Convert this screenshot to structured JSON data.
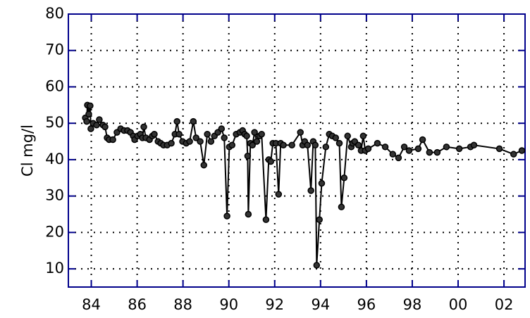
{
  "chart_data": {
    "type": "line",
    "ylabel": "Cl  mg/l",
    "color": "#000000",
    "axis_color": "#00008b",
    "grid": true,
    "markers": true,
    "xlim": [
      1983,
      2002.92
    ],
    "ylim": [
      5,
      80
    ],
    "xticks": [
      {
        "value": 1984,
        "label": "84"
      },
      {
        "value": 1986,
        "label": "86"
      },
      {
        "value": 1988,
        "label": "88"
      },
      {
        "value": 1990,
        "label": "90"
      },
      {
        "value": 1992,
        "label": "92"
      },
      {
        "value": 1994,
        "label": "94"
      },
      {
        "value": 1996,
        "label": "96"
      },
      {
        "value": 1998,
        "label": "98"
      },
      {
        "value": 2000,
        "label": "00"
      },
      {
        "value": 2002,
        "label": "02"
      }
    ],
    "yticks": [
      10,
      20,
      30,
      40,
      50,
      60,
      70,
      80
    ],
    "x": [
      1983.74,
      1983.8,
      1983.83,
      1983.89,
      1983.95,
      1983.98,
      1984.08,
      1984.23,
      1984.35,
      1984.51,
      1984.6,
      1984.69,
      1984.78,
      1984.94,
      1985.12,
      1985.28,
      1985.43,
      1985.58,
      1985.71,
      1985.83,
      1985.89,
      1986.02,
      1986.14,
      1986.23,
      1986.29,
      1986.38,
      1986.54,
      1986.66,
      1986.75,
      1986.91,
      1987.03,
      1987.15,
      1987.31,
      1987.49,
      1987.65,
      1987.74,
      1987.83,
      1987.98,
      1988.14,
      1988.29,
      1988.45,
      1988.57,
      1988.75,
      1988.91,
      1989.06,
      1989.22,
      1989.37,
      1989.52,
      1989.68,
      1989.8,
      1989.92,
      1990.02,
      1990.14,
      1990.32,
      1990.48,
      1990.6,
      1990.69,
      1990.78,
      1990.82,
      1990.85,
      1990.94,
      1991.03,
      1991.12,
      1991.22,
      1991.34,
      1991.43,
      1991.62,
      1991.74,
      1991.83,
      1991.92,
      1992.05,
      1992.17,
      1992.26,
      1992.38,
      1992.75,
      1993.12,
      1993.22,
      1993.31,
      1993.43,
      1993.58,
      1993.68,
      1993.77,
      1993.83,
      1993.95,
      1994.05,
      1994.23,
      1994.38,
      1994.51,
      1994.66,
      1994.82,
      1994.91,
      1995.03,
      1995.18,
      1995.34,
      1995.4,
      1995.49,
      1995.65,
      1995.77,
      1995.86,
      1995.95,
      1996.08,
      1996.48,
      1996.82,
      1997.15,
      1997.4,
      1997.65,
      1997.86,
      1998.26,
      1998.45,
      1998.75,
      1999.09,
      1999.49,
      2000.05,
      2000.54,
      2000.69,
      2001.8,
      2002.42,
      2002.78
    ],
    "values": [
      51.5,
      50.5,
      55,
      52.5,
      54.8,
      48.5,
      50,
      49.5,
      51,
      49.5,
      49,
      46,
      45.5,
      45.5,
      47.5,
      48.5,
      48,
      48,
      47.5,
      46.5,
      45.5,
      46.5,
      47,
      46,
      49,
      46,
      45.5,
      46.5,
      47,
      45,
      44.5,
      44,
      44,
      44.5,
      47,
      50.5,
      47,
      45,
      44.5,
      45,
      50.5,
      46,
      45,
      38.5,
      47,
      45,
      46.5,
      47.5,
      48.5,
      46,
      24.5,
      43.5,
      44,
      47,
      47.5,
      48,
      47,
      46.5,
      41,
      25,
      44.5,
      44,
      47.5,
      45,
      46.5,
      47,
      23.5,
      40,
      39.5,
      44.5,
      44.5,
      30.5,
      44.5,
      44,
      44,
      47.5,
      44,
      45,
      44,
      31.5,
      45,
      44,
      11,
      23.5,
      33.5,
      43.5,
      47,
      46.5,
      46,
      44.5,
      27,
      35,
      46.5,
      43.5,
      44.5,
      45,
      44,
      42.5,
      46.5,
      42.5,
      43,
      44.5,
      43.5,
      41.5,
      40.5,
      43.5,
      42.5,
      43,
      45.5,
      42,
      42,
      43.5,
      43,
      43.5,
      44,
      43,
      41.5,
      42.5
    ]
  }
}
